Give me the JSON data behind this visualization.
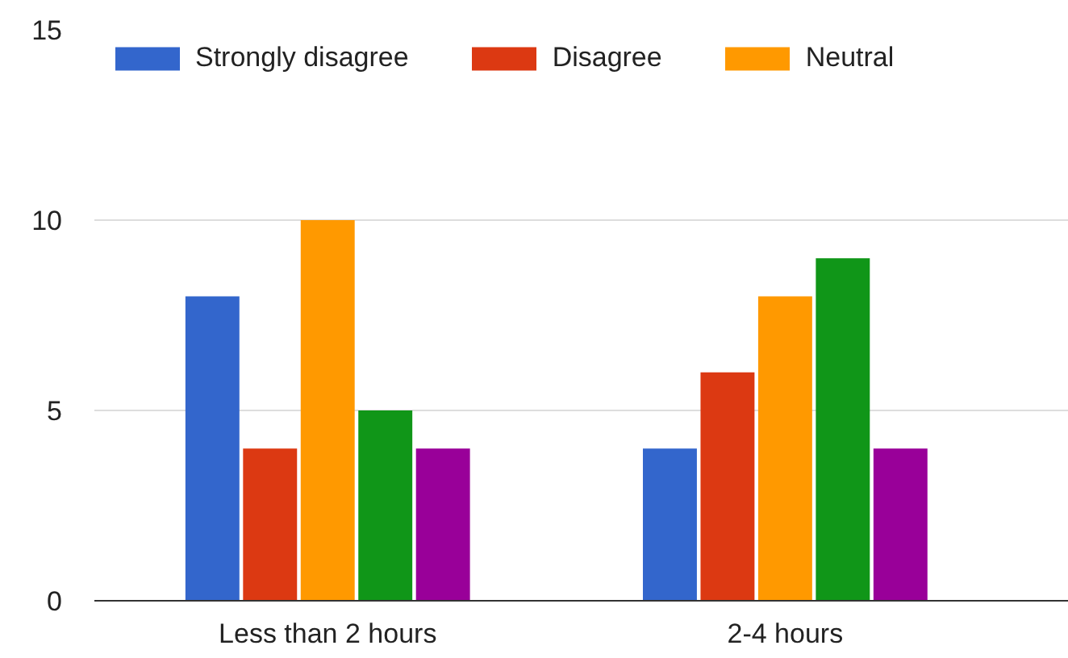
{
  "chart_data": {
    "type": "bar",
    "categories": [
      "Less than 2 hours",
      "2-4 hours"
    ],
    "series": [
      {
        "name": "Strongly disagree",
        "color": "#3366cc",
        "values": [
          8,
          4
        ]
      },
      {
        "name": "Disagree",
        "color": "#dc3912",
        "values": [
          4,
          6
        ]
      },
      {
        "name": "Neutral",
        "color": "#ff9900",
        "values": [
          10,
          8
        ]
      },
      {
        "color": "#109618",
        "values": [
          5,
          9
        ]
      },
      {
        "color": "#990099",
        "values": [
          4,
          4
        ]
      }
    ],
    "ylim": [
      0,
      15
    ],
    "yticks": [
      0,
      5,
      10,
      15
    ],
    "grid": "y",
    "legend": "top left"
  }
}
